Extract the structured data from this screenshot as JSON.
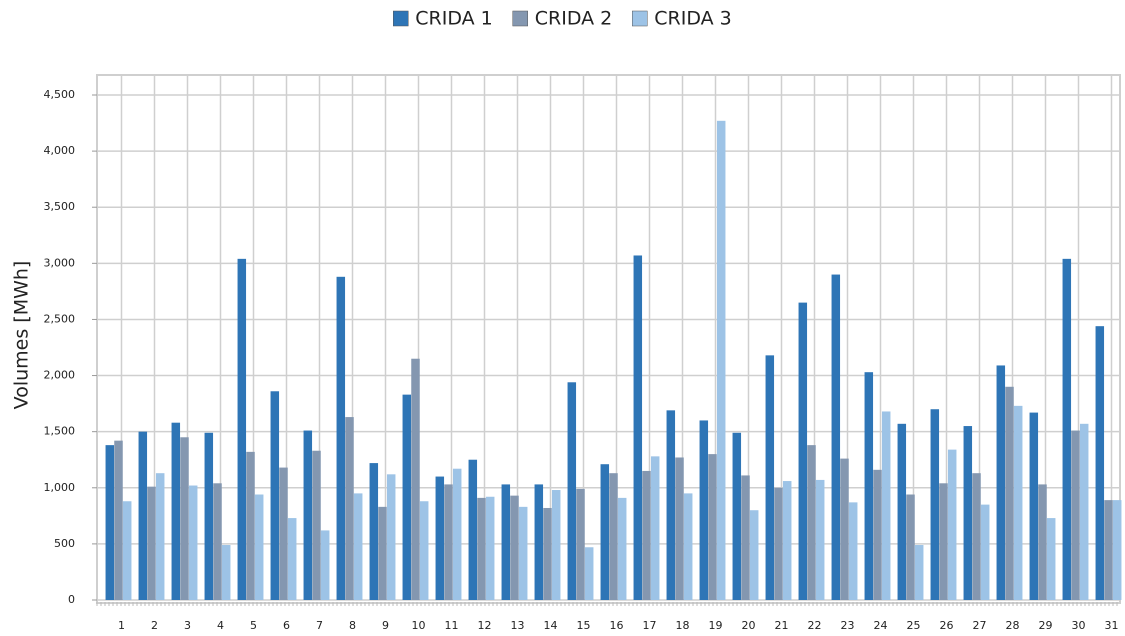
{
  "chart_data": {
    "type": "bar",
    "y_label": "Volumes [MWh]",
    "categories": [
      "1",
      "2",
      "3",
      "4",
      "5",
      "6",
      "7",
      "8",
      "9",
      "10",
      "11",
      "12",
      "13",
      "14",
      "15",
      "16",
      "17",
      "18",
      "19",
      "20",
      "21",
      "22",
      "23",
      "24",
      "25",
      "26",
      "27",
      "28",
      "29",
      "30",
      "31"
    ],
    "series": [
      {
        "name": "CRIDA 1",
        "color": "#2e75b6",
        "values": [
          1380,
          1500,
          1580,
          1490,
          3040,
          1860,
          1510,
          2880,
          1220,
          1830,
          1100,
          1250,
          1030,
          1030,
          1940,
          1210,
          3070,
          1690,
          1600,
          1490,
          2180,
          2650,
          2900,
          2030,
          1570,
          1700,
          1550,
          2090,
          1670,
          3040,
          2440
        ]
      },
      {
        "name": "CRIDA 2",
        "color": "#8497b0",
        "values": [
          1420,
          1010,
          1450,
          1040,
          1320,
          1180,
          1330,
          1630,
          830,
          2150,
          1030,
          910,
          930,
          820,
          990,
          1130,
          1150,
          1270,
          1300,
          1110,
          1000,
          1380,
          1260,
          1160,
          940,
          1040,
          1130,
          1900,
          1030,
          1510,
          890
        ]
      },
      {
        "name": "CRIDA 3",
        "color": "#9dc3e6",
        "values": [
          880,
          1130,
          1020,
          490,
          940,
          730,
          620,
          950,
          1120,
          880,
          1170,
          920,
          830,
          980,
          470,
          910,
          1280,
          950,
          4270,
          800,
          1060,
          1070,
          870,
          1680,
          490,
          1340,
          850,
          1730,
          730,
          1570,
          890
        ]
      }
    ],
    "ylim": [
      0,
      4500
    ],
    "yticks": [
      0,
      500,
      {
        "value": 1000,
        "label": "1,000"
      },
      {
        "value": 1500,
        "label": "1,500"
      },
      {
        "value": 2000,
        "label": "2,000"
      },
      {
        "value": 2500,
        "label": "2,500"
      },
      {
        "value": 3000,
        "label": "3,000"
      },
      {
        "value": 3500,
        "label": "3,500"
      },
      {
        "value": 4000,
        "label": "4,000"
      },
      {
        "value": 4500,
        "label": "4,500"
      }
    ],
    "grid": true,
    "legend": "top"
  }
}
